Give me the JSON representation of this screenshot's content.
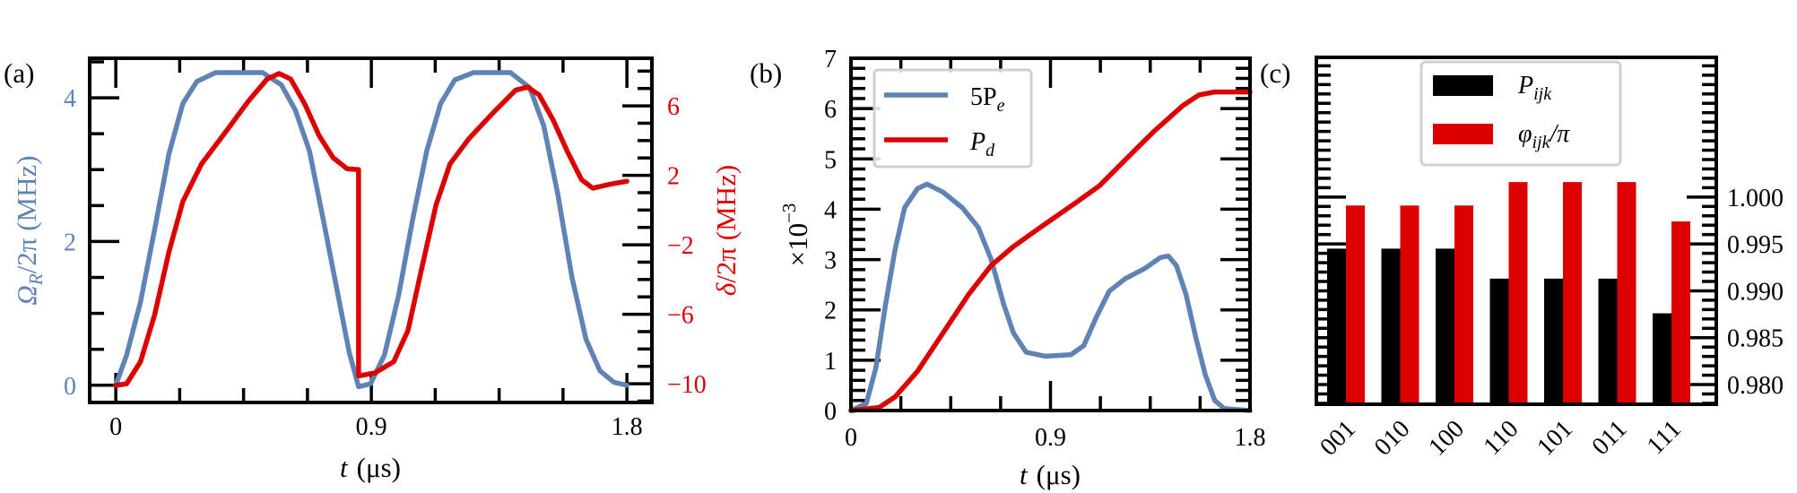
{
  "chart_data": [
    {
      "panel": "(a)",
      "type": "line",
      "xlabel": {
        "var": "t",
        "unit": "(μs)"
      },
      "xlim": [
        -0.092,
        1.888
      ],
      "x_ticks": [
        0,
        0.9,
        1.8
      ],
      "x_tick_labels": [
        "0",
        "0.9",
        "1.8"
      ],
      "y_left": {
        "label": {
          "main": "Ω",
          "sub": "R",
          "rest": "/2π (MHz)"
        },
        "color": "#5f83b4",
        "ylim": [
          -0.24,
          4.55
        ],
        "ticks": [
          0,
          2,
          4
        ],
        "tick_labels": [
          "0",
          "2",
          "4"
        ]
      },
      "y_right": {
        "label": {
          "main": "δ",
          "rest": "/2π (MHz)"
        },
        "color": "#dd0000",
        "ylim": [
          -11.08,
          8.74
        ],
        "ticks": [
          -10,
          -6,
          -2,
          2,
          6
        ],
        "tick_labels": [
          "−10",
          "−6",
          "−2",
          "2",
          "6"
        ]
      },
      "grid": false,
      "series": [
        {
          "axis": "left",
          "color": "#5f83b4",
          "x": [
            0,
            0.038,
            0.087,
            0.137,
            0.187,
            0.236,
            0.286,
            0.352,
            0.517,
            0.583,
            0.632,
            0.682,
            0.731,
            0.781,
            0.822,
            0.855,
            0.897,
            0.946,
            0.996,
            1.045,
            1.095,
            1.144,
            1.194,
            1.26,
            1.39,
            1.458,
            1.507,
            1.557,
            1.606,
            1.656,
            1.705,
            1.755,
            1.8
          ],
          "y": [
            0,
            0.42,
            1.16,
            2.17,
            3.22,
            3.92,
            4.23,
            4.35,
            4.35,
            4.18,
            3.83,
            3.26,
            2.3,
            1.29,
            0.46,
            -0.02,
            0.02,
            0.42,
            1.25,
            2.3,
            3.26,
            3.92,
            4.25,
            4.35,
            4.35,
            4.14,
            3.61,
            2.65,
            1.51,
            0.64,
            0.2,
            0.04,
            0
          ]
        },
        {
          "axis": "right",
          "color": "#dd0000",
          "x": [
            0,
            0.038,
            0.087,
            0.137,
            0.187,
            0.236,
            0.302,
            0.385,
            0.467,
            0.533,
            0.575,
            0.616,
            0.666,
            0.716,
            0.765,
            0.814,
            0.855,
            0.855,
            0.913,
            0.979,
            1.029,
            1.078,
            1.128,
            1.177,
            1.243,
            1.326,
            1.408,
            1.45,
            1.491,
            1.54,
            1.59,
            1.64,
            1.68,
            1.738,
            1.8
          ],
          "y": [
            -10.1,
            -10,
            -8.73,
            -6.02,
            -2.41,
            0.49,
            2.66,
            4.46,
            6.27,
            7.54,
            7.86,
            7.54,
            6.09,
            4.28,
            3.02,
            2.38,
            2.33,
            -9.55,
            -9.37,
            -8.73,
            -6.93,
            -3.31,
            0.3,
            2.66,
            4.1,
            5.55,
            6.9,
            7.08,
            6.63,
            5.19,
            3.38,
            1.75,
            1.26,
            1.48,
            1.66
          ]
        }
      ]
    },
    {
      "panel": "(b)",
      "type": "line",
      "xlabel": {
        "var": "t",
        "unit": "(μs)"
      },
      "ylabel": {
        "main": "×10",
        "sup": "−3"
      },
      "xlim": [
        0,
        1.8
      ],
      "ylim": [
        0,
        7
      ],
      "x_ticks": [
        0,
        0.9,
        1.8
      ],
      "x_tick_labels": [
        "0",
        "0.9",
        "1.8"
      ],
      "y_ticks": [
        0,
        1,
        2,
        3,
        4,
        5,
        6,
        7
      ],
      "y_tick_labels": [
        "0",
        "1",
        "2",
        "3",
        "4",
        "5",
        "6",
        "7"
      ],
      "grid": false,
      "legend_position": "top-left",
      "series": [
        {
          "name": {
            "main": "5P",
            "sub": "e"
          },
          "color": "#5f83b4",
          "x": [
            0,
            0.069,
            0.112,
            0.156,
            0.199,
            0.242,
            0.3,
            0.343,
            0.415,
            0.502,
            0.574,
            0.632,
            0.689,
            0.733,
            0.79,
            0.877,
            0.992,
            1.05,
            1.107,
            1.165,
            1.237,
            1.324,
            1.396,
            1.432,
            1.468,
            1.511,
            1.554,
            1.598,
            1.641,
            1.684,
            1.8
          ],
          "y": [
            0,
            0.14,
            0.84,
            2.11,
            3.2,
            4.03,
            4.41,
            4.5,
            4.34,
            4.03,
            3.64,
            3.01,
            2.11,
            1.54,
            1.16,
            1.08,
            1.11,
            1.29,
            1.86,
            2.37,
            2.62,
            2.82,
            3.04,
            3.07,
            2.88,
            2.31,
            1.48,
            0.71,
            0.2,
            0.04,
            0
          ]
        },
        {
          "name": {
            "main": "P",
            "sub": "d"
          },
          "color": "#dd0000",
          "x": [
            0,
            0.127,
            0.199,
            0.3,
            0.415,
            0.531,
            0.632,
            0.733,
            0.877,
            1.021,
            1.122,
            1.237,
            1.367,
            1.497,
            1.569,
            1.641,
            1.8
          ],
          "y": [
            0,
            0.06,
            0.27,
            0.78,
            1.54,
            2.31,
            2.88,
            3.26,
            3.71,
            4.15,
            4.47,
            4.98,
            5.55,
            6.06,
            6.27,
            6.33,
            6.33
          ]
        }
      ]
    },
    {
      "panel": "(c)",
      "type": "bar",
      "categories": [
        "001",
        "010",
        "100",
        "110",
        "101",
        "011",
        "111"
      ],
      "ylim": [
        0.9779,
        1.0149
      ],
      "y_ticks": [
        0.98,
        0.985,
        0.99,
        0.995,
        1.0
      ],
      "y_tick_labels": [
        "0.980",
        "0.985",
        "0.990",
        "0.995",
        "1.000"
      ],
      "y_axis_side": "right",
      "grid": false,
      "legend_position": "top-center",
      "series": [
        {
          "name": {
            "main": "P",
            "sub": "ijk",
            "rest": ""
          },
          "color": "#000000",
          "values": [
            0.9945,
            0.9945,
            0.9945,
            0.9913,
            0.9913,
            0.9913,
            0.9876
          ]
        },
        {
          "name": {
            "main": "φ",
            "sub": "ijk",
            "rest": "/π"
          },
          "color": "#dd0000",
          "values": [
            0.9991,
            0.9991,
            0.9991,
            1.0016,
            1.0016,
            1.0016,
            0.9974
          ]
        }
      ]
    }
  ]
}
